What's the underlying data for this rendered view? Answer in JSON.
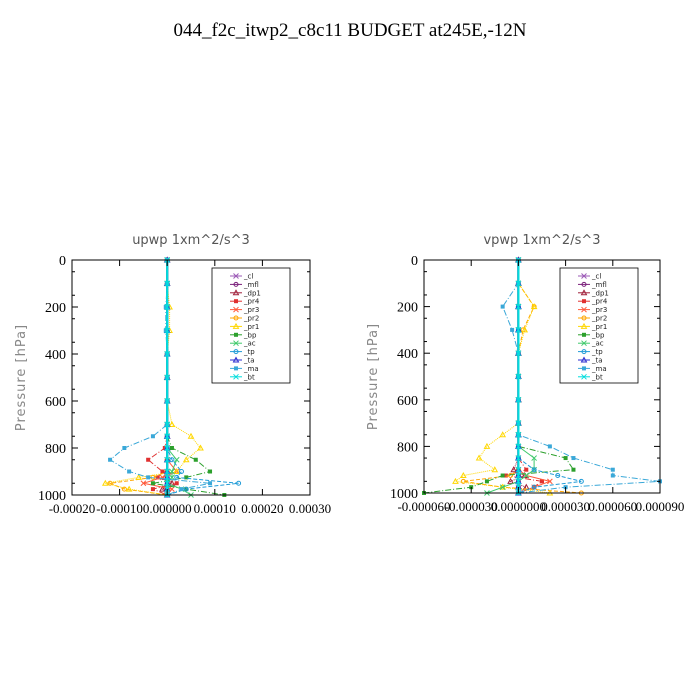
{
  "title": "044_f2c_itwp2_c8c11  BUDGET at245E,-12N",
  "legend_labels": [
    "_cl",
    "_mfl",
    "_dp1",
    "_pr4",
    "_pr3",
    "_pr2",
    "_pr1",
    "_bp",
    "_ac",
    "_tp",
    "_ta",
    "_ma",
    "_bt"
  ],
  "colors": {
    "_cl": "#9b59b6",
    "_mfl": "#7a1f7a",
    "_dp1": "#a0203a",
    "_pr4": "#e03030",
    "_pr3": "#ff5a3c",
    "_pr2": "#ffa500",
    "_pr1": "#ffd700",
    "_bp": "#2ca02c",
    "_ac": "#3ec96b",
    "_tp": "#1f9bd7",
    "_ta": "#2b2bd0",
    "_ma": "#3aa8d8",
    "_bt": "#00dddd"
  },
  "pressure_levels": [
    0,
    100,
    200,
    300,
    400,
    500,
    600,
    700,
    750,
    800,
    850,
    900,
    925,
    950,
    975,
    1000
  ],
  "chart_data": [
    {
      "type": "line",
      "title": "upwp  1xm^2/s^3",
      "xlabel": "",
      "ylabel": "Pressure [hPa]",
      "xlim": [
        -0.0002,
        0.0003
      ],
      "ylim": [
        1000,
        0
      ],
      "xticks": [
        -0.0002,
        -0.0001,
        0.0,
        0.0001,
        0.0002,
        0.0003
      ],
      "xtick_labels": [
        "-0.00020",
        "-0.00010",
        "0.000000",
        "0.00010",
        "0.00020",
        "0.00030"
      ],
      "yticks": [
        0,
        200,
        400,
        600,
        800,
        1000
      ],
      "ytick_labels": [
        "0",
        "200",
        "400",
        "600",
        "800",
        "1000"
      ],
      "legend": "top-right",
      "series": [
        {
          "name": "_cl",
          "values": [
            0,
            0,
            0,
            0,
            0,
            0,
            0,
            0,
            0,
            0,
            0,
            0,
            0,
            0,
            0,
            0
          ]
        },
        {
          "name": "_mfl",
          "values": [
            0,
            0,
            0,
            0,
            0,
            0,
            0,
            0,
            0,
            0,
            0,
            0,
            0,
            0,
            0,
            0
          ]
        },
        {
          "name": "_dp1",
          "values": [
            0,
            0,
            0,
            0,
            0,
            0,
            0,
            0,
            0,
            0,
            0,
            0,
            -5e-06,
            1e-05,
            -1e-05,
            0
          ]
        },
        {
          "name": "_pr4",
          "values": [
            0,
            0,
            0,
            0,
            0,
            0,
            0,
            0,
            0,
            -5e-06,
            -4e-05,
            -1e-05,
            -2e-05,
            2e-05,
            -3e-05,
            0
          ]
        },
        {
          "name": "_pr3",
          "values": [
            0,
            0,
            0,
            0,
            0,
            0,
            0,
            0,
            0,
            0,
            0,
            2e-05,
            -1e-05,
            -5e-05,
            1e-05,
            0
          ]
        },
        {
          "name": "_pr2",
          "values": [
            0,
            0,
            0,
            0,
            0,
            0,
            0,
            0,
            0,
            0,
            0,
            0,
            -3e-05,
            -0.00012,
            -9e-05,
            0
          ]
        },
        {
          "name": "_pr1",
          "values": [
            0,
            0,
            5e-06,
            5e-06,
            0,
            0,
            0,
            1e-05,
            5e-05,
            7e-05,
            4e-05,
            2e-05,
            -6e-05,
            -0.00013,
            -8e-05,
            0
          ]
        },
        {
          "name": "_bp",
          "values": [
            0,
            0,
            0,
            0,
            0,
            0,
            0,
            0,
            0,
            1e-05,
            6e-05,
            9e-05,
            4e-05,
            -3e-05,
            4e-05,
            0.00012
          ]
        },
        {
          "name": "_ac",
          "values": [
            0,
            0,
            0,
            0,
            0,
            0,
            0,
            0,
            0,
            0,
            2e-05,
            1e-05,
            1e-05,
            0,
            3e-05,
            5e-05
          ]
        },
        {
          "name": "_tp",
          "values": [
            0,
            0,
            0,
            0,
            0,
            0,
            0,
            0,
            0,
            0,
            1e-05,
            3e-05,
            2e-05,
            0.00015,
            4e-05,
            0
          ]
        },
        {
          "name": "_ta",
          "values": [
            0,
            0,
            0,
            0,
            0,
            0,
            0,
            0,
            0,
            0,
            0,
            0,
            0,
            0,
            0,
            0
          ]
        },
        {
          "name": "_ma",
          "values": [
            0,
            0,
            -3e-06,
            -3e-06,
            0,
            0,
            0,
            0,
            -3e-05,
            -9e-05,
            -0.00012,
            -8e-05,
            -4e-05,
            9e-05,
            3e-05,
            0
          ]
        },
        {
          "name": "_bt",
          "values": [
            0,
            0,
            0,
            0,
            0,
            0,
            0,
            0,
            0,
            0,
            0,
            0,
            0,
            0,
            0,
            0
          ]
        }
      ]
    },
    {
      "type": "line",
      "title": "vpwp  1xm^2/s^3",
      "xlabel": "",
      "ylabel": "Pressure [hPa]",
      "xlim": [
        -6e-05,
        9e-05
      ],
      "ylim": [
        1000,
        0
      ],
      "xticks": [
        -6e-05,
        -3e-05,
        0.0,
        3e-05,
        6e-05,
        9e-05
      ],
      "xtick_labels": [
        "-0.000060",
        "-0.000030",
        "0.0000000",
        "0.000030",
        "0.000060",
        "0.000090"
      ],
      "yticks": [
        0,
        200,
        400,
        600,
        800,
        1000
      ],
      "ytick_labels": [
        "0",
        "200",
        "400",
        "600",
        "800",
        "1000"
      ],
      "legend": "top-right",
      "series": [
        {
          "name": "_cl",
          "values": [
            0,
            0,
            0,
            0,
            0,
            0,
            0,
            0,
            0,
            0,
            0,
            0,
            0,
            0,
            0,
            0
          ]
        },
        {
          "name": "_mfl",
          "values": [
            0,
            0,
            0,
            0,
            0,
            0,
            0,
            0,
            0,
            0,
            0,
            0,
            0,
            0,
            0,
            0
          ]
        },
        {
          "name": "_dp1",
          "values": [
            0,
            0,
            0,
            0,
            0,
            0,
            0,
            0,
            0,
            0,
            0,
            -3e-06,
            4e-06,
            -5e-06,
            5e-06,
            0
          ]
        },
        {
          "name": "_pr4",
          "values": [
            0,
            0,
            0,
            0,
            0,
            0,
            0,
            0,
            0,
            0,
            0,
            5e-06,
            -8e-06,
            1.5e-05,
            1e-05,
            0
          ]
        },
        {
          "name": "_pr3",
          "values": [
            0,
            0,
            0,
            0,
            0,
            0,
            0,
            0,
            0,
            0,
            0,
            0,
            5e-06,
            2e-05,
            1e-05,
            0
          ]
        },
        {
          "name": "_pr2",
          "values": [
            0,
            0,
            1e-05,
            3e-06,
            0,
            0,
            0,
            0,
            0,
            0,
            0,
            0,
            -5e-06,
            -3.5e-05,
            -1e-05,
            4e-05
          ]
        },
        {
          "name": "_pr1",
          "values": [
            0,
            0,
            1e-05,
            4e-06,
            0,
            0,
            0,
            0,
            -1e-05,
            -2e-05,
            -2.5e-05,
            -1.5e-05,
            -3.5e-05,
            -4e-05,
            -1e-05,
            2e-05
          ]
        },
        {
          "name": "_bp",
          "values": [
            0,
            0,
            0,
            0,
            0,
            0,
            0,
            0,
            0,
            0,
            3e-05,
            3.5e-05,
            -1e-05,
            -2e-05,
            -3e-05,
            -6e-05
          ]
        },
        {
          "name": "_ac",
          "values": [
            0,
            0,
            0,
            0,
            0,
            0,
            0,
            0,
            0,
            0,
            1e-05,
            1e-05,
            5e-06,
            0,
            -1e-05,
            -2e-05
          ]
        },
        {
          "name": "_tp",
          "values": [
            0,
            0,
            0,
            0,
            0,
            0,
            0,
            0,
            0,
            0,
            0,
            1e-05,
            2.5e-05,
            4e-05,
            1e-05,
            0
          ]
        },
        {
          "name": "_ta",
          "values": [
            0,
            0,
            0,
            0,
            0,
            0,
            0,
            0,
            0,
            0,
            0,
            0,
            0,
            0,
            0,
            0
          ]
        },
        {
          "name": "_ma",
          "values": [
            0,
            0,
            -1e-05,
            -4e-06,
            0,
            0,
            0,
            0,
            0,
            2e-05,
            3.5e-05,
            6e-05,
            6e-05,
            9e-05,
            3e-05,
            0
          ]
        },
        {
          "name": "_bt",
          "values": [
            0,
            0,
            0,
            0,
            0,
            0,
            0,
            0,
            0,
            0,
            0,
            0,
            0,
            0,
            0,
            0
          ]
        }
      ]
    }
  ]
}
